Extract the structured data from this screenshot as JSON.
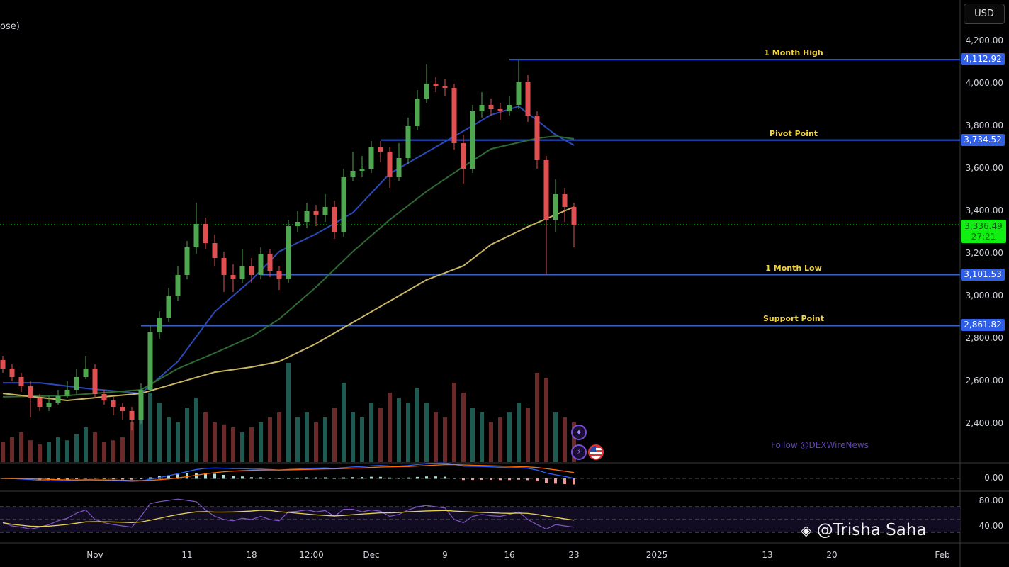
{
  "header": {
    "title_fragment": "ose)",
    "currency_button": "USD"
  },
  "watermark": {
    "follow_text": "Follow @DEXWireNews",
    "author": "@Trisha Saha",
    "logo": "binance-diamond-logo"
  },
  "colors": {
    "up": "#4fa84f",
    "down": "#e05050",
    "level_line": "#2f5fe8",
    "level_label": "#f2d43e",
    "ma_fast": "#2a4ab8",
    "ma_mid": "#2f6a34",
    "ma_slow": "#c9b664",
    "rsi": "#7e57c2",
    "rsi_ma": "#e8d44d",
    "last_price": "#11ee11"
  },
  "chart_data": {
    "type": "candlestick",
    "price_axis": {
      "ticks": [
        "4,200.00",
        "4,000.00",
        "3,800.00",
        "3,600.00",
        "3,400.00",
        "3,200.00",
        "3,000.00",
        "2,800.00",
        "2,600.00",
        "2,400.00"
      ],
      "tick_values": [
        4200,
        4000,
        3800,
        3600,
        3400,
        3200,
        3000,
        2800,
        2600,
        2400
      ],
      "range": [
        2310,
        4330
      ]
    },
    "time_axis": {
      "ticks": [
        {
          "label": "Nov",
          "date": "2024-11-01"
        },
        {
          "label": "11",
          "date": "2024-11-11"
        },
        {
          "label": "18",
          "date": "2024-11-18"
        },
        {
          "label": "12:00",
          "date": "2024-11-24T12:00"
        },
        {
          "label": "Dec",
          "date": "2024-12-01"
        },
        {
          "label": "9",
          "date": "2024-12-09"
        },
        {
          "label": "16",
          "date": "2024-12-16"
        },
        {
          "label": "23",
          "date": "2024-12-23"
        },
        {
          "label": "2025",
          "date": "2025-01-01"
        },
        {
          "label": "13",
          "date": "2025-01-13"
        },
        {
          "label": "20",
          "date": "2025-01-20"
        },
        {
          "label": "Feb",
          "date": "2025-02-01"
        }
      ]
    },
    "first_date": "2024-10-22",
    "open": [
      2700,
      2660,
      2620,
      2577,
      2520,
      2480,
      2500,
      2530,
      2560,
      2620,
      2660,
      2540,
      2510,
      2480,
      2460,
      2420,
      2560,
      2830,
      2900,
      3000,
      3100,
      3230,
      3340,
      3250,
      3180,
      3100,
      3080,
      3140,
      3100,
      3200,
      3120,
      3080,
      3330,
      3350,
      3400,
      3380,
      3420,
      3300,
      3560,
      3590,
      3600,
      3700,
      3680,
      3560,
      3650,
      3800,
      3930,
      4000,
      3990,
      3980,
      3720,
      3600,
      3870,
      3900,
      3880,
      3870,
      3900,
      4010,
      3850,
      3640,
      3360,
      3480,
      3420
    ],
    "high": [
      2720,
      2680,
      2640,
      2600,
      2540,
      2530,
      2560,
      2600,
      2660,
      2720,
      2680,
      2560,
      2530,
      2500,
      2480,
      2590,
      2860,
      2930,
      3040,
      3140,
      3260,
      3440,
      3370,
      3290,
      3210,
      3150,
      3220,
      3180,
      3230,
      3220,
      3140,
      3360,
      3400,
      3440,
      3430,
      3480,
      3450,
      3600,
      3680,
      3660,
      3730,
      3730,
      3700,
      3720,
      3840,
      3970,
      4090,
      4030,
      4020,
      4000,
      3760,
      3900,
      3960,
      3930,
      3910,
      3940,
      4112.92,
      4040,
      3870,
      3660,
      3550,
      3510,
      3440
    ],
    "low": [
      2640,
      2600,
      2550,
      2430,
      2460,
      2460,
      2490,
      2520,
      2540,
      2610,
      2520,
      2490,
      2440,
      2420,
      2370,
      2400,
      2550,
      2800,
      2880,
      2980,
      3080,
      3200,
      3220,
      3140,
      3020,
      3020,
      3060,
      3060,
      3080,
      3090,
      3030,
      3060,
      3300,
      3320,
      3330,
      3350,
      3270,
      3280,
      3540,
      3560,
      3580,
      3630,
      3510,
      3540,
      3620,
      3780,
      3910,
      3960,
      3940,
      3690,
      3530,
      3580,
      3840,
      3850,
      3830,
      3850,
      3880,
      3820,
      3600,
      3101.53,
      3300,
      3350,
      3230
    ],
    "close": [
      2660,
      2620,
      2577,
      2520,
      2480,
      2500,
      2530,
      2560,
      2620,
      2660,
      2540,
      2510,
      2480,
      2460,
      2420,
      2560,
      2830,
      2900,
      3000,
      3100,
      3230,
      3340,
      3250,
      3180,
      3100,
      3080,
      3140,
      3100,
      3200,
      3120,
      3080,
      3330,
      3350,
      3400,
      3380,
      3420,
      3300,
      3560,
      3590,
      3600,
      3700,
      3680,
      3560,
      3650,
      3800,
      3930,
      4000,
      3990,
      3980,
      3720,
      3600,
      3870,
      3900,
      3880,
      3870,
      3900,
      4010,
      3850,
      3640,
      3360,
      3480,
      3420,
      3336.49
    ],
    "volume_relative": [
      20,
      25,
      30,
      22,
      18,
      20,
      25,
      22,
      28,
      35,
      30,
      20,
      22,
      25,
      40,
      45,
      70,
      60,
      45,
      40,
      55,
      65,
      50,
      40,
      38,
      35,
      30,
      35,
      40,
      45,
      50,
      100,
      45,
      50,
      40,
      45,
      55,
      80,
      50,
      45,
      60,
      55,
      70,
      65,
      60,
      75,
      60,
      50,
      45,
      80,
      70,
      55,
      50,
      40,
      45,
      50,
      60,
      55,
      90,
      85,
      50,
      45,
      40
    ],
    "moving_averages": [
      {
        "color_key": "ma_fast",
        "points": [
          [
            "2024-10-22",
            2593
          ],
          [
            "2024-10-26",
            2593
          ],
          [
            "2024-10-31",
            2567
          ],
          [
            "2024-11-06",
            2543
          ],
          [
            "2024-11-10",
            2693
          ],
          [
            "2024-11-14",
            2927
          ],
          [
            "2024-11-18",
            3077
          ],
          [
            "2024-11-21",
            3210
          ],
          [
            "2024-11-25",
            3293
          ],
          [
            "2024-11-29",
            3393
          ],
          [
            "2024-12-03",
            3577
          ],
          [
            "2024-12-07",
            3677
          ],
          [
            "2024-12-11",
            3777
          ],
          [
            "2024-12-14",
            3853
          ],
          [
            "2024-12-17",
            3893
          ],
          [
            "2024-12-19",
            3827
          ],
          [
            "2024-12-21",
            3760
          ],
          [
            "2024-12-23",
            3710
          ]
        ]
      },
      {
        "color_key": "ma_mid",
        "points": [
          [
            "2024-10-22",
            2527
          ],
          [
            "2024-10-29",
            2533
          ],
          [
            "2024-11-02",
            2547
          ],
          [
            "2024-11-06",
            2560
          ],
          [
            "2024-11-10",
            2660
          ],
          [
            "2024-11-14",
            2733
          ],
          [
            "2024-11-18",
            2810
          ],
          [
            "2024-11-21",
            2893
          ],
          [
            "2024-11-25",
            3043
          ],
          [
            "2024-11-29",
            3210
          ],
          [
            "2024-12-03",
            3360
          ],
          [
            "2024-12-07",
            3493
          ],
          [
            "2024-12-11",
            3610
          ],
          [
            "2024-12-14",
            3693
          ],
          [
            "2024-12-19",
            3743
          ],
          [
            "2024-12-21",
            3753
          ],
          [
            "2024-12-23",
            3740
          ]
        ]
      },
      {
        "color_key": "ma_slow",
        "points": [
          [
            "2024-10-22",
            2543
          ],
          [
            "2024-10-29",
            2510
          ],
          [
            "2024-11-02",
            2527
          ],
          [
            "2024-11-06",
            2543
          ],
          [
            "2024-11-10",
            2593
          ],
          [
            "2024-11-14",
            2643
          ],
          [
            "2024-11-18",
            2667
          ],
          [
            "2024-11-21",
            2693
          ],
          [
            "2024-11-25",
            2777
          ],
          [
            "2024-11-29",
            2877
          ],
          [
            "2024-12-03",
            2977
          ],
          [
            "2024-12-07",
            3077
          ],
          [
            "2024-12-11",
            3143
          ],
          [
            "2024-12-14",
            3243
          ],
          [
            "2024-12-18",
            3327
          ],
          [
            "2024-12-21",
            3383
          ],
          [
            "2024-12-23",
            3420
          ]
        ]
      }
    ],
    "levels": [
      {
        "label": "1 Month High",
        "value": 4112.92,
        "tag": "4,112.92",
        "from": "2024-12-16"
      },
      {
        "label": "Pivot Point",
        "value": 3734.52,
        "tag": "3,734.52",
        "from": "2024-12-02"
      },
      {
        "label": "1 Month Low",
        "value": 3101.53,
        "tag": "3,101.53",
        "from": "2024-11-19"
      },
      {
        "label": "Support Point",
        "value": 2861.82,
        "tag": "2,861.82",
        "from": "2024-11-06"
      }
    ],
    "last_price": {
      "value": 3336.49,
      "label": "3,336.49",
      "countdown": "27:21"
    },
    "macd_pane": {
      "ticks": [
        "0.00"
      ]
    },
    "rsi_pane": {
      "ticks": [
        "80.00",
        "40.00"
      ],
      "tick_values": [
        80,
        40
      ],
      "band": [
        30,
        70
      ],
      "mid": 50,
      "rsi": [
        45,
        40,
        38,
        35,
        38,
        42,
        48,
        52,
        60,
        65,
        50,
        45,
        42,
        40,
        38,
        55,
        75,
        78,
        80,
        82,
        80,
        78,
        65,
        55,
        50,
        48,
        52,
        50,
        55,
        50,
        48,
        62,
        63,
        65,
        62,
        64,
        55,
        66,
        66,
        62,
        65,
        63,
        55,
        58,
        65,
        70,
        72,
        70,
        68,
        50,
        45,
        55,
        58,
        56,
        55,
        58,
        62,
        50,
        42,
        35,
        42,
        40,
        38
      ]
    }
  }
}
